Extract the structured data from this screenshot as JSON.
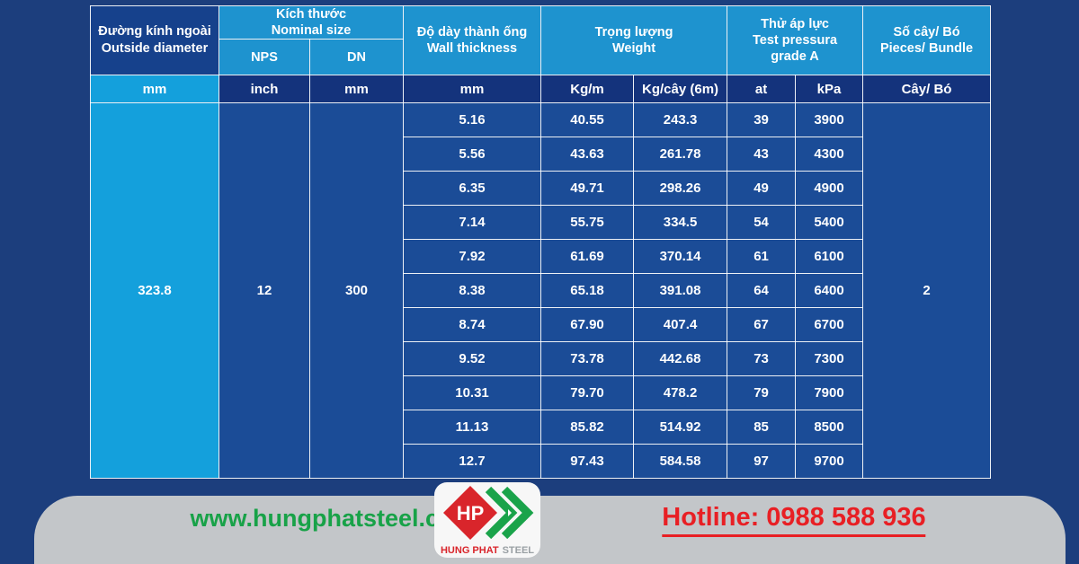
{
  "table": {
    "header": {
      "outside_diameter": "Đường kính ngoài\nOutside diameter",
      "nominal_size": "Kích thước\nNominal size",
      "nps": "NPS",
      "dn": "DN",
      "wall_thickness": "Độ dày thành ống\nWall thickness",
      "weight": "Trọng lượng\nWeight",
      "test_pressure": "Thử áp lực\nTest pressura\ngrade A",
      "pieces_bundle": "Số cây/ Bó\nPieces/ Bundle"
    },
    "units": [
      "mm",
      "inch",
      "mm",
      "mm",
      "Kg/m",
      "Kg/cây (6m)",
      "at",
      "kPa",
      "Cây/ Bó"
    ],
    "merged": {
      "outside_diameter": "323.8",
      "nps": "12",
      "dn": "300",
      "pieces": "2"
    },
    "rows": [
      {
        "wall": "5.16",
        "kg_m": "40.55",
        "kg_tree": "243.3",
        "at": "39",
        "kpa": "3900"
      },
      {
        "wall": "5.56",
        "kg_m": "43.63",
        "kg_tree": "261.78",
        "at": "43",
        "kpa": "4300"
      },
      {
        "wall": "6.35",
        "kg_m": "49.71",
        "kg_tree": "298.26",
        "at": "49",
        "kpa": "4900"
      },
      {
        "wall": "7.14",
        "kg_m": "55.75",
        "kg_tree": "334.5",
        "at": "54",
        "kpa": "5400"
      },
      {
        "wall": "7.92",
        "kg_m": "61.69",
        "kg_tree": "370.14",
        "at": "61",
        "kpa": "6100"
      },
      {
        "wall": "8.38",
        "kg_m": "65.18",
        "kg_tree": "391.08",
        "at": "64",
        "kpa": "6400"
      },
      {
        "wall": "8.74",
        "kg_m": "67.90",
        "kg_tree": "407.4",
        "at": "67",
        "kpa": "6700"
      },
      {
        "wall": "9.52",
        "kg_m": "73.78",
        "kg_tree": "442.68",
        "at": "73",
        "kpa": "7300"
      },
      {
        "wall": "10.31",
        "kg_m": "79.70",
        "kg_tree": "478.2",
        "at": "79",
        "kpa": "7900"
      },
      {
        "wall": "11.13",
        "kg_m": "85.82",
        "kg_tree": "514.92",
        "at": "85",
        "kpa": "8500"
      },
      {
        "wall": "12.7",
        "kg_m": "97.43",
        "kg_tree": "584.58",
        "at": "97",
        "kpa": "9700"
      }
    ]
  },
  "footer": {
    "website": "www.hungphatsteel.com",
    "hotline": "Hotline: 0988 588 936",
    "logo_monogram": "HP",
    "logo_brand": "HUNG PHAT",
    "logo_suffix": "STEEL"
  },
  "colors": {
    "page_background": "#1c3e7d",
    "header_light_blue": "#1e93cf",
    "header_dark_blue": "#16418c",
    "unit_row_navy": "#14337c",
    "cyan_accent": "#14a0dc",
    "data_cell_blue": "#1b4c97",
    "footer_gray": "#c3c6c9",
    "website_green": "#18a248",
    "hotline_red": "#e81f24",
    "logo_red": "#d9252b"
  }
}
